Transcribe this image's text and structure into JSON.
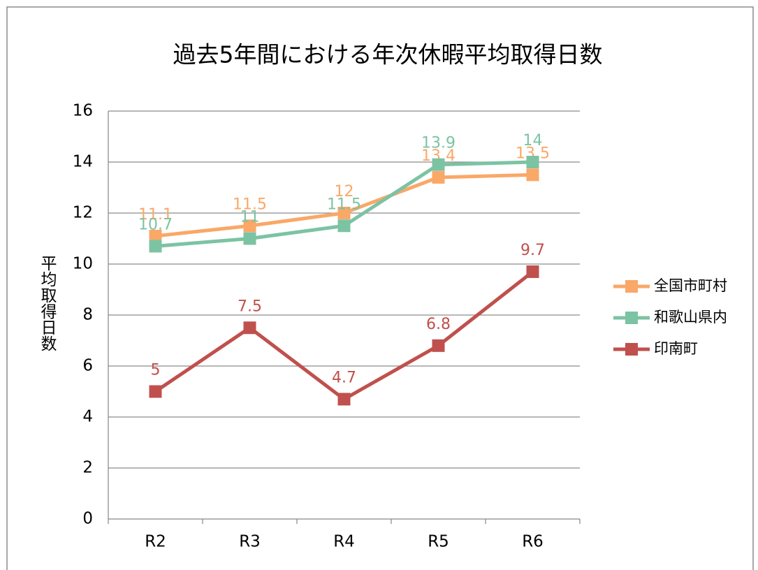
{
  "chart_data": {
    "type": "line",
    "title": "過去5年間における年次休暇平均取得日数",
    "y_label": "平均取得日数",
    "categories": [
      "R2",
      "R3",
      "R4",
      "R5",
      "R6"
    ],
    "series": [
      {
        "name": "全国市町村",
        "color": "#f9a868",
        "values": [
          11.1,
          11.5,
          12,
          13.4,
          13.5
        ]
      },
      {
        "name": "和歌山県内",
        "color": "#7cc3a3",
        "values": [
          10.7,
          11,
          11.5,
          13.9,
          14
        ]
      },
      {
        "name": "印南町",
        "color": "#c0504d",
        "values": [
          5,
          7.5,
          4.7,
          6.8,
          9.7
        ]
      }
    ],
    "ylim": [
      0,
      16
    ],
    "yticks": [
      0,
      2,
      4,
      6,
      8,
      10,
      12,
      14,
      16
    ],
    "grid": true,
    "legend": "right"
  }
}
